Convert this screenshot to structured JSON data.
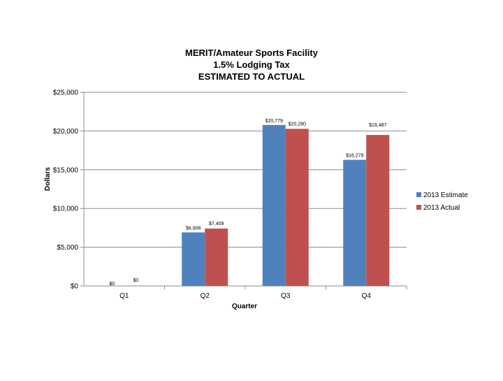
{
  "chart_data": {
    "type": "bar",
    "title": [
      "MERIT/Amateur Sports Facility",
      "1.5% Lodging Tax",
      "ESTIMATED TO ACTUAL"
    ],
    "xlabel": "Quarter",
    "ylabel": "Dollars",
    "categories": [
      "Q1",
      "Q2",
      "Q3",
      "Q4"
    ],
    "ylim": [
      0,
      25000
    ],
    "yticks": [
      0,
      5000,
      10000,
      15000,
      20000,
      25000
    ],
    "ytick_labels": [
      "$0",
      "$5,000",
      "$10,000",
      "$15,000",
      "$20,000",
      "$25,000"
    ],
    "grid": true,
    "legend_position": "right",
    "series": [
      {
        "name": "2013 Estimate",
        "color": "#4F81BD",
        "values": [
          0,
          6908,
          20779,
          16279
        ],
        "labels": [
          "$0",
          "$6,908",
          "$20,779",
          "$16,279"
        ]
      },
      {
        "name": "2013 Actual",
        "color": "#C0504D",
        "values": [
          0,
          7409,
          20280,
          19487
        ],
        "labels": [
          "$0",
          "$7,409",
          "$20,280",
          "$19,487"
        ]
      }
    ]
  }
}
